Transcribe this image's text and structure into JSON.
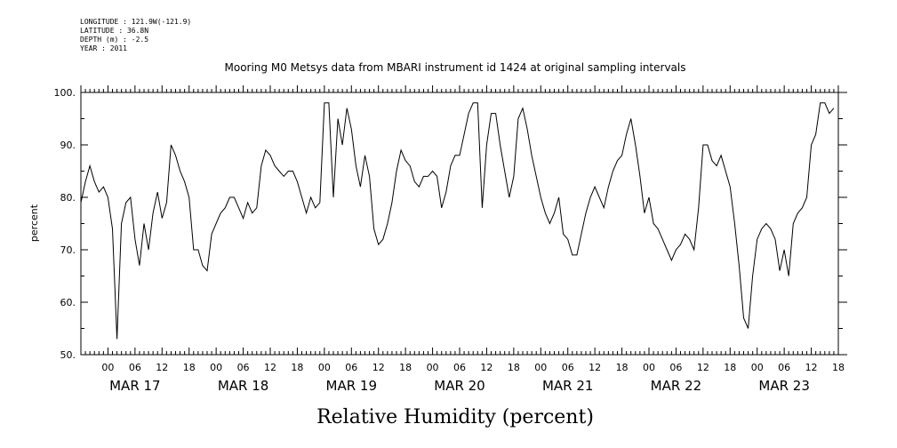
{
  "header": {
    "lines": [
      "LONGITUDE : 121.9W(-121.9)",
      "LATITUDE : 36.8N",
      "DEPTH (m) : -2.5",
      "YEAR : 2011"
    ]
  },
  "chart_data": {
    "type": "line",
    "title": "Mooring M0 Metsys data from MBARI instrument id 1424 at original sampling intervals",
    "xlabel": "Relative Humidity (percent)",
    "ylabel": "percent",
    "ylim": [
      50,
      100
    ],
    "yticks": [
      50,
      60,
      70,
      80,
      90,
      100
    ],
    "ytick_labels": [
      "50.",
      "60.",
      "70.",
      "80.",
      "90.",
      "100."
    ],
    "xlim_hours": [
      -6,
      162
    ],
    "hour_tick_labels": [
      "00",
      "06",
      "12",
      "18",
      "00",
      "06",
      "12",
      "18",
      "00",
      "06",
      "12",
      "18",
      "00",
      "06",
      "12",
      "18",
      "00",
      "06",
      "12",
      "18",
      "00",
      "06",
      "12",
      "18",
      "00",
      "06",
      "12",
      "18"
    ],
    "day_labels": [
      "MAR 17",
      "MAR 18",
      "MAR 19",
      "MAR 20",
      "MAR 21",
      "MAR 22",
      "MAR 23"
    ],
    "grid": false,
    "series": [
      {
        "color": "#000000",
        "x": [
          -6,
          -5,
          -4,
          -3,
          -2,
          -1,
          0,
          1,
          2,
          3,
          4,
          5,
          6,
          7,
          8,
          9,
          10,
          11,
          12,
          13,
          14,
          15,
          16,
          17,
          18,
          19,
          20,
          21,
          22,
          23,
          24,
          25,
          26,
          27,
          28,
          29,
          30,
          31,
          32,
          33,
          34,
          35,
          36,
          37,
          38,
          39,
          40,
          41,
          42,
          43,
          44,
          45,
          46,
          47,
          48,
          49,
          50,
          51,
          52,
          53,
          54,
          55,
          56,
          57,
          58,
          59,
          60,
          61,
          62,
          63,
          64,
          65,
          66,
          67,
          68,
          69,
          70,
          71,
          72,
          73,
          74,
          75,
          76,
          77,
          78,
          79,
          80,
          81,
          82,
          83,
          84,
          85,
          86,
          87,
          88,
          89,
          90,
          91,
          92,
          93,
          94,
          95,
          96,
          97,
          98,
          99,
          100,
          101,
          102,
          103,
          104,
          105,
          106,
          107,
          108,
          109,
          110,
          111,
          112,
          113,
          114,
          115,
          116,
          117,
          118,
          119,
          120,
          121,
          122,
          123,
          124,
          125,
          126,
          127,
          128,
          129,
          130,
          131,
          132,
          133,
          134,
          135,
          136,
          137,
          138,
          139,
          140,
          141,
          142,
          143,
          144,
          145,
          146,
          147,
          148,
          149,
          150,
          151,
          152,
          153,
          154,
          155,
          156,
          157,
          158,
          159,
          160,
          161
        ],
        "y": [
          79,
          83,
          86,
          83,
          81,
          82,
          80,
          74,
          53,
          75,
          79,
          80,
          72,
          67,
          75,
          70,
          77,
          81,
          76,
          79,
          90,
          88,
          85,
          83,
          80,
          70,
          70,
          67,
          66,
          73,
          75,
          77,
          78,
          80,
          80,
          78,
          76,
          79,
          77,
          78,
          86,
          89,
          88,
          86,
          85,
          84,
          85,
          85,
          83,
          80,
          77,
          80,
          78,
          79,
          98,
          98,
          80,
          95,
          90,
          97,
          93,
          86,
          82,
          88,
          84,
          74,
          71,
          72,
          75,
          79,
          85,
          89,
          87,
          86,
          83,
          82,
          84,
          84,
          85,
          84,
          78,
          81,
          86,
          88,
          88,
          92,
          96,
          98,
          98,
          78,
          90,
          96,
          96,
          90,
          85,
          80,
          84,
          95,
          97,
          93,
          88,
          84,
          80,
          77,
          75,
          77,
          80,
          73,
          72,
          69,
          69,
          73,
          77,
          80,
          82,
          80,
          78,
          82,
          85,
          87,
          88,
          92,
          95,
          90,
          84,
          77,
          80,
          75,
          74,
          72,
          70,
          68,
          70,
          71,
          73,
          72,
          70,
          78,
          90,
          90,
          87,
          86,
          88,
          85,
          82,
          75,
          67,
          57,
          55,
          65,
          72,
          74,
          75,
          74,
          72,
          66,
          70,
          65,
          75,
          77,
          78,
          80,
          90,
          92,
          98,
          98,
          96,
          97
        ]
      }
    ]
  }
}
